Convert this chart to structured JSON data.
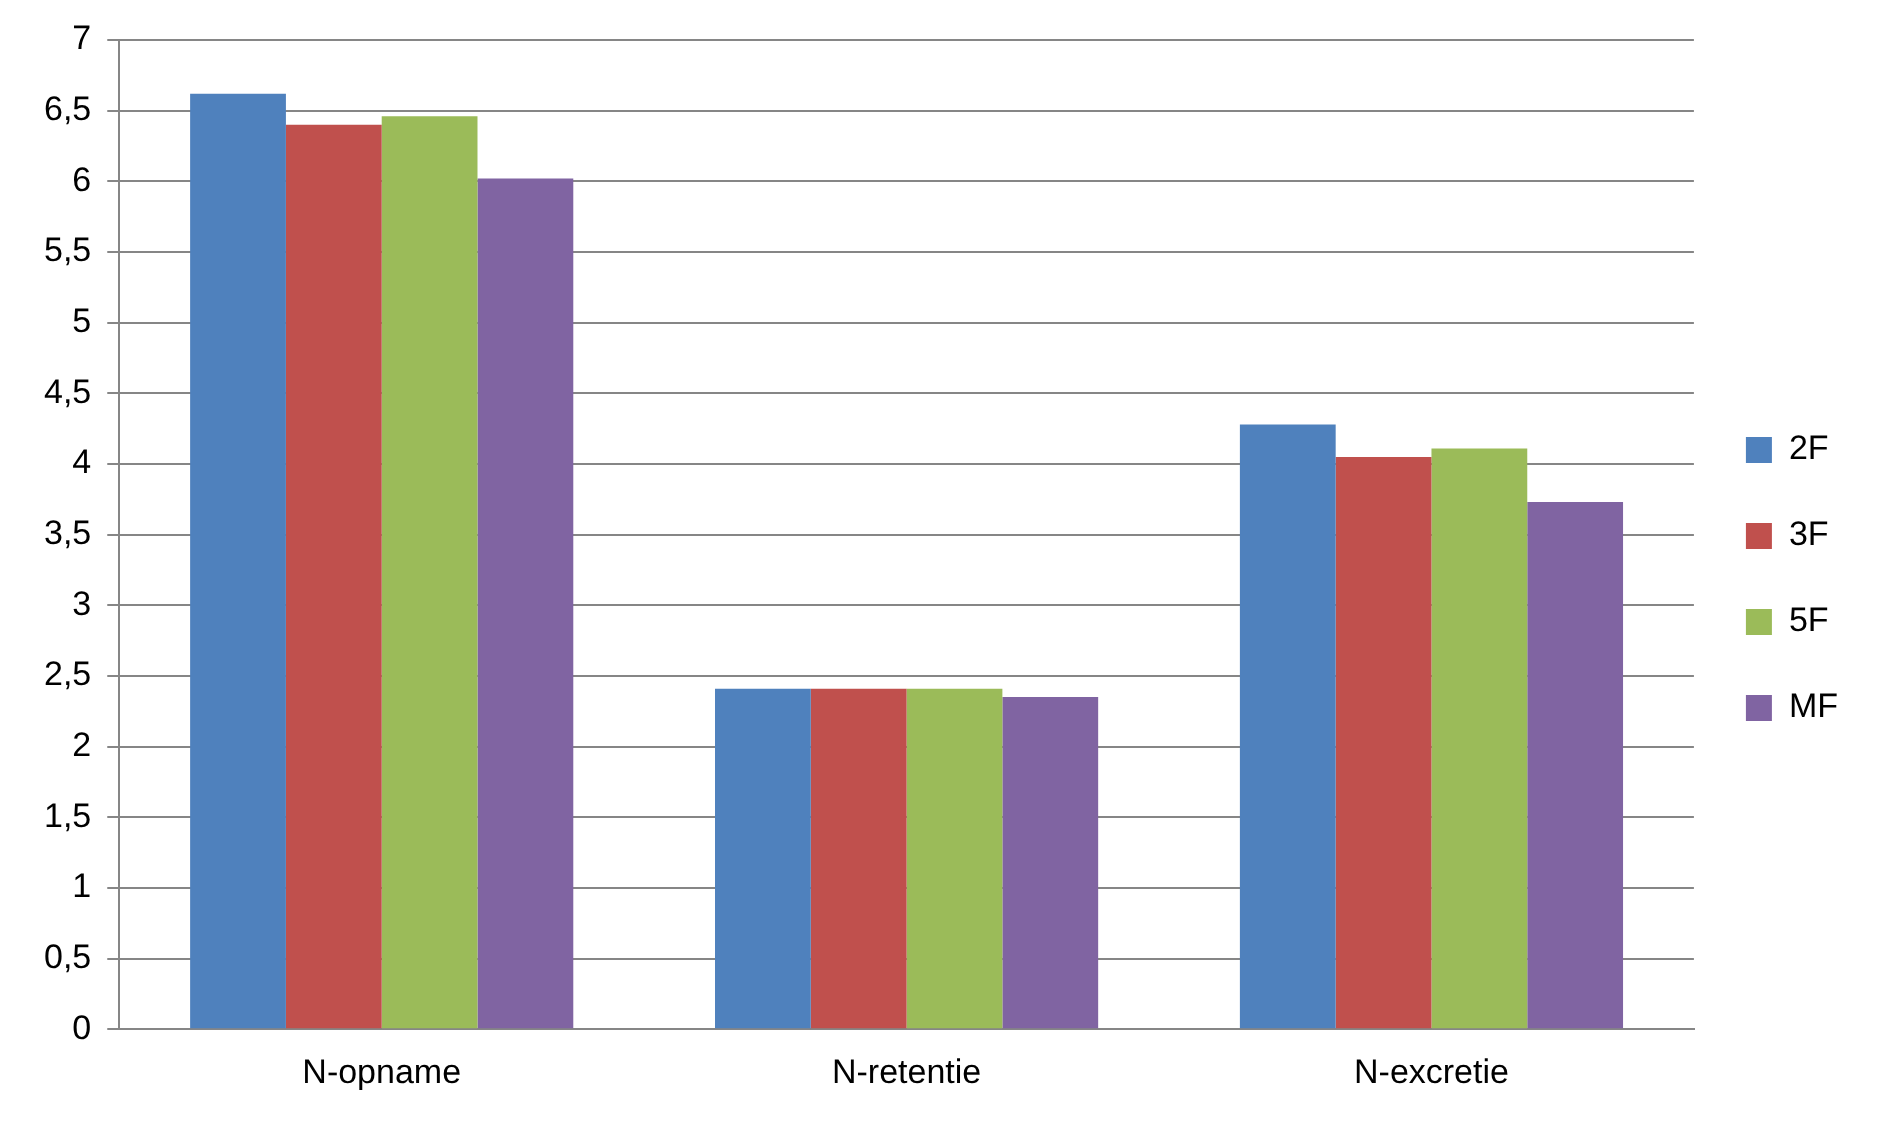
{
  "chart_data": {
    "type": "bar",
    "categories": [
      "N-opname",
      "N-retentie",
      "N-excretie"
    ],
    "series": [
      {
        "name": "2F",
        "color": "#4f81bd",
        "values": [
          6.62,
          2.41,
          4.28
        ]
      },
      {
        "name": "3F",
        "color": "#c0504d",
        "values": [
          6.4,
          2.41,
          4.05
        ]
      },
      {
        "name": "5F",
        "color": "#9bbb59",
        "values": [
          6.46,
          2.41,
          4.11
        ]
      },
      {
        "name": "MF",
        "color": "#8064a2",
        "values": [
          6.02,
          2.35,
          3.73
        ]
      }
    ],
    "ylim": [
      0,
      7
    ],
    "yticks": [
      0,
      {
        "value": 0.5,
        "label": "0,5"
      },
      1,
      {
        "value": 1.5,
        "label": "1,5"
      },
      2,
      {
        "value": 2.5,
        "label": "2,5"
      },
      3,
      {
        "value": 3.5,
        "label": "3,5"
      },
      4,
      {
        "value": 4.5,
        "label": "4,5"
      },
      5,
      {
        "value": 5.5,
        "label": "5,5"
      },
      6,
      {
        "value": 6.5,
        "label": "6,5"
      },
      7
    ],
    "grid": "y",
    "legend": "right"
  }
}
